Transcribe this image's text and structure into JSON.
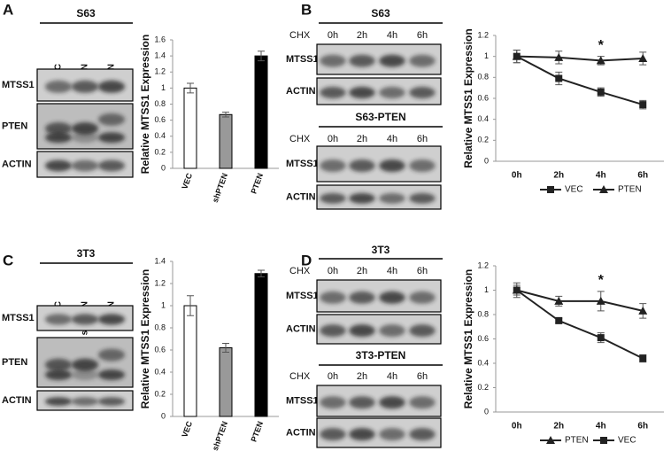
{
  "blots": [
    {
      "label": "A",
      "blocks": [
        {
          "title": "S63",
          "lanes": [
            "VEC",
            "shPTEN",
            "PTEN"
          ],
          "rows": [
            "MTSS1",
            "PTEN",
            "ACTIN"
          ]
        }
      ]
    },
    {
      "label": "B",
      "blocks": [
        {
          "title": "S63",
          "treatment": "CHX",
          "lanes": [
            "0h",
            "2h",
            "4h",
            "6h"
          ],
          "rows": [
            "MTSS1",
            "ACTIN"
          ]
        },
        {
          "title": "S63-PTEN",
          "treatment": "CHX",
          "lanes": [
            "0h",
            "2h",
            "4h",
            "6h"
          ],
          "rows": [
            "MTSS1",
            "ACTIN"
          ]
        }
      ]
    },
    {
      "label": "C",
      "blocks": [
        {
          "title": "3T3",
          "lanes": [
            "VEC",
            "shPTEN",
            "PTEN"
          ],
          "rows": [
            "MTSS1",
            "PTEN",
            "ACTIN"
          ]
        }
      ]
    },
    {
      "label": "D",
      "blocks": [
        {
          "title": "3T3",
          "treatment": "CHX",
          "lanes": [
            "0h",
            "2h",
            "4h",
            "6h"
          ],
          "rows": [
            "MTSS1",
            "ACTIN"
          ]
        },
        {
          "title": "3T3-PTEN",
          "treatment": "CHX",
          "lanes": [
            "0h",
            "2h",
            "4h",
            "6h"
          ],
          "rows": [
            "MTSS1",
            "ACTIN"
          ]
        }
      ]
    }
  ],
  "chart_data": [
    {
      "type": "bar",
      "y_label": "Relative MTSS1 Expression",
      "categories": [
        "VEC",
        "shPTEN",
        "PTEN"
      ],
      "values": [
        1.0,
        0.67,
        1.4
      ],
      "errors": [
        0.06,
        0.03,
        0.06
      ],
      "colors": [
        "#ffffff",
        "#999999",
        "#000000"
      ],
      "ylim": [
        0,
        1.6
      ],
      "yticks": [
        0,
        0.2,
        0.4,
        0.6,
        0.8,
        1,
        1.2,
        1.4,
        1.6
      ]
    },
    {
      "type": "line",
      "y_label": "Relative MTSS1 Expression",
      "categories": [
        "0h",
        "2h",
        "4h",
        "6h"
      ],
      "series": [
        {
          "name": "VEC",
          "marker": "square",
          "color": "#222222",
          "values": [
            1,
            0.79,
            0.66,
            0.54
          ],
          "errors": [
            0.06,
            0.06,
            0.04,
            0.04
          ]
        },
        {
          "name": "PTEN",
          "marker": "triangle",
          "color": "#222222",
          "values": [
            1,
            0.99,
            0.96,
            0.98
          ],
          "errors": [
            0.06,
            0.06,
            0.04,
            0.06
          ]
        }
      ],
      "annotations": [
        {
          "text": "*",
          "x": "4h"
        }
      ],
      "ylim": [
        0,
        1.2
      ],
      "yticks": [
        0,
        0.2,
        0.4,
        0.6,
        0.8,
        1,
        1.2
      ],
      "legend": "bottom"
    },
    {
      "type": "bar",
      "y_label": "Relative MTSS1 Expression",
      "categories": [
        "VEC",
        "shPTEN",
        "PTEN"
      ],
      "values": [
        1.0,
        0.62,
        1.29
      ],
      "errors": [
        0.09,
        0.04,
        0.03
      ],
      "colors": [
        "#ffffff",
        "#999999",
        "#000000"
      ],
      "ylim": [
        0,
        1.4
      ],
      "yticks": [
        0,
        0.2,
        0.4,
        0.6,
        0.8,
        1,
        1.2,
        1.4
      ]
    },
    {
      "type": "line",
      "y_label": "Relative MTSS1 Expression",
      "categories": [
        "0h",
        "2h",
        "4h",
        "6h"
      ],
      "series": [
        {
          "name": "PTEN",
          "marker": "triangle",
          "color": "#222222",
          "values": [
            1,
            0.91,
            0.91,
            0.83
          ],
          "errors": [
            0.04,
            0.04,
            0.08,
            0.06
          ]
        },
        {
          "name": "VEC",
          "marker": "square",
          "color": "#222222",
          "values": [
            1,
            0.75,
            0.61,
            0.44
          ],
          "errors": [
            0.06,
            0.02,
            0.04,
            0.03
          ]
        }
      ],
      "annotations": [
        {
          "text": "*",
          "x": "4h"
        }
      ],
      "ylim": [
        0,
        1.2
      ],
      "yticks": [
        0,
        0.2,
        0.4,
        0.6,
        0.8,
        1,
        1.2
      ],
      "legend": "bottom"
    }
  ]
}
